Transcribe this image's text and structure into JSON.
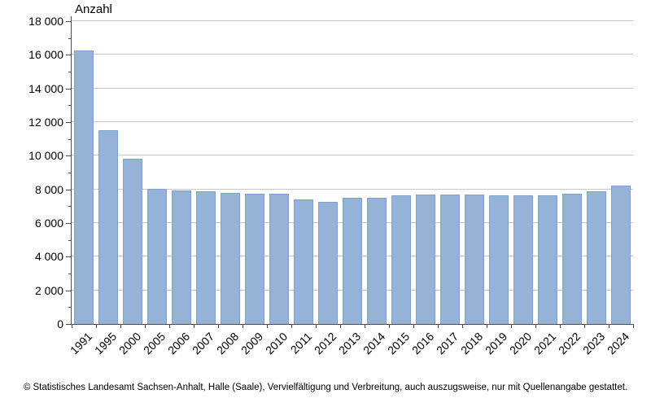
{
  "footer": "© Statistisches Landesamt Sachsen-Anhalt, Halle (Saale), Vervielfältigung und Verbreitung, auch auszugsweise, nur mit Quellenangabe gestattet.",
  "colors": {
    "bar_fill": "#95B3D7",
    "bar_border": "#7EA0CE",
    "gridline": "#C9C9C9",
    "axis": "#4D4D4D",
    "text": "#000000",
    "background": "#FFFFFF"
  },
  "chart_data": {
    "type": "bar",
    "title": "Anzahl",
    "xlabel": "",
    "ylabel": "Anzahl",
    "categories": [
      "1991",
      "1995",
      "2000",
      "2005",
      "2006",
      "2007",
      "2008",
      "2009",
      "2010",
      "2011",
      "2012",
      "2013",
      "2014",
      "2015",
      "2016",
      "2017",
      "2018",
      "2019",
      "2020",
      "2021",
      "2022",
      "2023",
      "2024"
    ],
    "values": [
      16250,
      11500,
      9800,
      8050,
      7950,
      7900,
      7800,
      7750,
      7750,
      7400,
      7250,
      7500,
      7500,
      7650,
      7700,
      7700,
      7700,
      7650,
      7650,
      7650,
      7750,
      7900,
      8250
    ],
    "ylim": [
      0,
      18000
    ],
    "y_major_step": 2000,
    "y_minor_step": 1000,
    "y_tick_labels": [
      "0",
      "2 000",
      "4 000",
      "6 000",
      "8 000",
      "10 000",
      "12 000",
      "14 000",
      "16 000",
      "18 000"
    ],
    "grid": "horizontal major gridlines",
    "legend_position": "none",
    "x_label_rotation_deg": -45
  }
}
